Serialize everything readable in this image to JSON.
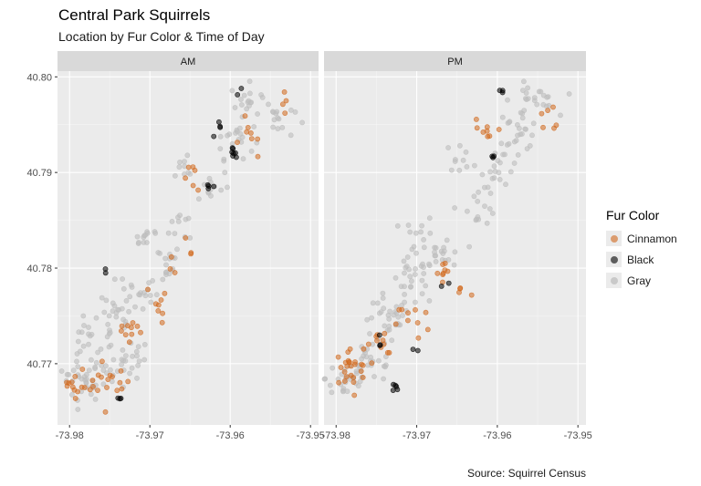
{
  "chart_data": {
    "type": "scatter",
    "title": "Central Park Squirrels",
    "subtitle": "Location by Fur Color & Time of Day",
    "caption": "Source: Squirrel Census",
    "facets": [
      "AM",
      "PM"
    ],
    "xlim": [
      -73.9815,
      -73.949
    ],
    "ylim": [
      40.7636,
      40.8006
    ],
    "x_ticks": [
      -73.98,
      -73.97,
      -73.96,
      -73.95
    ],
    "x_tick_labels": [
      "-73.98",
      "-73.97",
      "-73.96",
      "-73.95"
    ],
    "y_ticks": [
      40.77,
      40.78,
      40.79,
      40.8
    ],
    "y_tick_labels": [
      "40.77",
      "40.78",
      "40.79",
      "40.80"
    ],
    "grid": true,
    "legend": {
      "title": "Fur Color",
      "position": "right",
      "entries": [
        {
          "label": "Cinnamon",
          "color": "#d2691e"
        },
        {
          "label": "Black",
          "color": "#000000"
        },
        {
          "label": "Gray",
          "color": "#bebebe"
        }
      ]
    },
    "series": [
      {
        "facet": "AM",
        "points": [
          {
            "color": "Gray",
            "clusters": [
              [
                -73.9785,
                40.7685,
                0.003,
                0.0025,
                26
              ],
              [
                -73.9755,
                40.7685,
                0.003,
                0.0025,
                22
              ],
              [
                -73.9725,
                40.7705,
                0.0025,
                0.002,
                18
              ],
              [
                -73.9775,
                40.7725,
                0.0025,
                0.002,
                16
              ],
              [
                -73.9745,
                40.7745,
                0.0025,
                0.0022,
                20
              ],
              [
                -73.9715,
                40.7775,
                0.0025,
                0.0025,
                22
              ],
              [
                -73.9685,
                40.7805,
                0.0025,
                0.002,
                16
              ],
              [
                -73.9705,
                40.7835,
                0.002,
                0.0015,
                12
              ],
              [
                -73.9655,
                40.7845,
                0.002,
                0.002,
                10
              ],
              [
                -73.9625,
                40.7885,
                0.0025,
                0.002,
                14
              ],
              [
                -73.9595,
                40.7935,
                0.0025,
                0.002,
                20
              ],
              [
                -73.9575,
                40.7975,
                0.0025,
                0.0018,
                18
              ],
              [
                -73.9545,
                40.7955,
                0.0025,
                0.002,
                14
              ],
              [
                -73.9655,
                40.7905,
                0.002,
                0.0015,
                8
              ]
            ]
          },
          {
            "color": "Cinnamon",
            "clusters": [
              [
                -73.9785,
                40.7685,
                0.0025,
                0.002,
                18
              ],
              [
                -73.9745,
                40.7675,
                0.002,
                0.0015,
                12
              ],
              [
                -73.9725,
                40.7735,
                0.002,
                0.002,
                10
              ],
              [
                -73.9685,
                40.7765,
                0.002,
                0.002,
                8
              ],
              [
                -73.9665,
                40.7815,
                0.002,
                0.0015,
                6
              ],
              [
                -73.9645,
                40.7895,
                0.0015,
                0.0015,
                6
              ],
              [
                -73.9575,
                40.7935,
                0.002,
                0.0025,
                8
              ],
              [
                -73.9535,
                40.7975,
                0.002,
                0.0015,
                4
              ]
            ]
          },
          {
            "color": "Black",
            "clusters": [
              [
                -73.9598,
                40.7921,
                0.0005,
                0.0004,
                7
              ],
              [
                -73.9625,
                40.7885,
                0.0005,
                0.0003,
                4
              ],
              [
                -73.9615,
                40.7945,
                0.0008,
                0.0008,
                4
              ],
              [
                -73.9738,
                40.7662,
                0.0006,
                0.0004,
                3
              ],
              [
                -73.9755,
                40.7795,
                0.0006,
                0.0005,
                2
              ],
              [
                -73.9585,
                40.7985,
                0.0006,
                0.0004,
                2
              ]
            ]
          }
        ]
      },
      {
        "facet": "PM",
        "points": [
          {
            "color": "Gray",
            "clusters": [
              [
                -73.9785,
                40.7685,
                0.0028,
                0.0025,
                30
              ],
              [
                -73.9755,
                40.7705,
                0.003,
                0.0025,
                26
              ],
              [
                -73.9735,
                40.7745,
                0.0028,
                0.0025,
                28
              ],
              [
                -73.9705,
                40.7785,
                0.0028,
                0.0025,
                26
              ],
              [
                -73.9665,
                40.7815,
                0.0025,
                0.0022,
                20
              ],
              [
                -73.9695,
                40.7835,
                0.002,
                0.0018,
                12
              ],
              [
                -73.9625,
                40.7865,
                0.0025,
                0.002,
                14
              ],
              [
                -73.9595,
                40.7905,
                0.0025,
                0.002,
                18
              ],
              [
                -73.9575,
                40.7945,
                0.0028,
                0.0022,
                24
              ],
              [
                -73.9555,
                40.7975,
                0.0028,
                0.0018,
                22
              ],
              [
                -73.9645,
                40.7915,
                0.002,
                0.0015,
                10
              ]
            ]
          },
          {
            "color": "Cinnamon",
            "clusters": [
              [
                -73.9785,
                40.7695,
                0.0025,
                0.0025,
                26
              ],
              [
                -73.9745,
                40.7715,
                0.002,
                0.002,
                10
              ],
              [
                -73.9705,
                40.7745,
                0.002,
                0.002,
                10
              ],
              [
                -73.9665,
                40.7795,
                0.002,
                0.002,
                8
              ],
              [
                -73.9645,
                40.7775,
                0.0015,
                0.0015,
                4
              ],
              [
                -73.9615,
                40.7945,
                0.002,
                0.0025,
                8
              ],
              [
                -73.9535,
                40.7955,
                0.002,
                0.002,
                6
              ]
            ]
          },
          {
            "color": "Black",
            "clusters": [
              [
                -73.9725,
                40.7675,
                0.0005,
                0.0006,
                5
              ],
              [
                -73.9745,
                40.7725,
                0.0006,
                0.0008,
                3
              ],
              [
                -73.9705,
                40.7715,
                0.0006,
                0.0004,
                2
              ],
              [
                -73.9595,
                40.7985,
                0.0006,
                0.0005,
                3
              ],
              [
                -73.9605,
                40.7915,
                0.0005,
                0.0005,
                3
              ],
              [
                -73.9665,
                40.7785,
                0.0006,
                0.0005,
                2
              ]
            ]
          }
        ]
      }
    ]
  }
}
